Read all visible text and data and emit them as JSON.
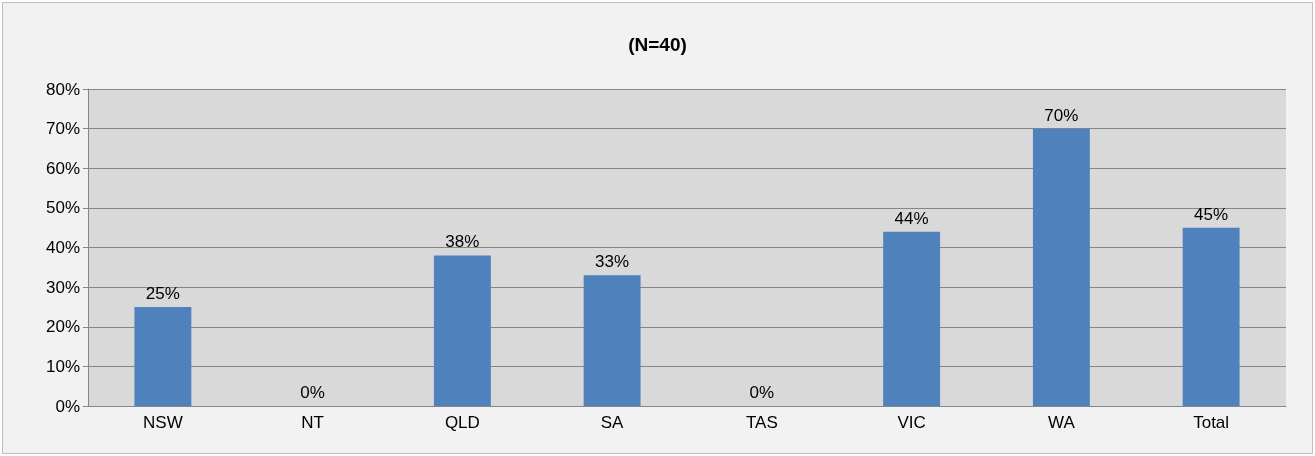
{
  "chart_data": {
    "type": "bar",
    "title": "(N=40)",
    "categories": [
      "NSW",
      "NT",
      "QLD",
      "SA",
      "TAS",
      "VIC",
      "WA",
      "Total"
    ],
    "values": [
      25,
      0,
      38,
      33,
      0,
      44,
      70,
      45
    ],
    "color": "#4f81bd",
    "ylim": [
      0,
      80
    ],
    "yticks": [
      {
        "value": 0,
        "label": "0%"
      },
      {
        "value": 10,
        "label": "10%"
      },
      {
        "value": 20,
        "label": "20%"
      },
      {
        "value": 30,
        "label": "30%"
      },
      {
        "value": 40,
        "label": "40%"
      },
      {
        "value": 50,
        "label": "50%"
      },
      {
        "value": 60,
        "label": "60%"
      },
      {
        "value": 70,
        "label": "70%"
      },
      {
        "value": 80,
        "label": "80%"
      }
    ],
    "value_labels": [
      "25%",
      "0%",
      "38%",
      "33%",
      "0%",
      "44%",
      "70%",
      "45%"
    ],
    "grid": "y"
  }
}
